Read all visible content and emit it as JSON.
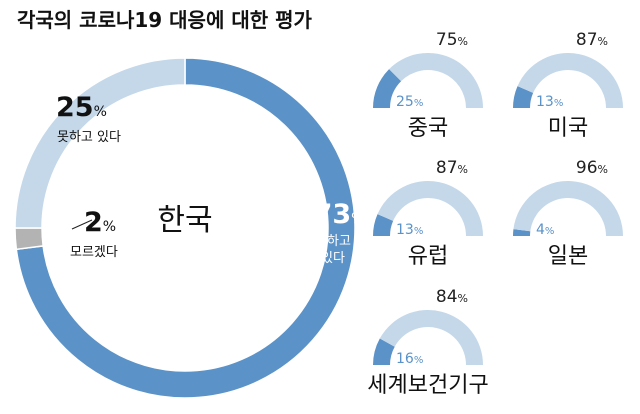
{
  "title": "각국의 코로나19 대응에 대한 평가",
  "colors": {
    "good": "#5b92c8",
    "bad": "#c4d8ea",
    "unknown": "#b3b3b3"
  },
  "chart_data": [
    {
      "type": "pie",
      "name": "한국",
      "slices": [
        {
          "label_lines": [
            "잘하고",
            "있다"
          ],
          "value": 73,
          "color_key": "good"
        },
        {
          "label_lines": [
            "모르겠다"
          ],
          "value": 2,
          "color_key": "unknown"
        },
        {
          "label_lines": [
            "못하고 있다"
          ],
          "value": 25,
          "color_key": "bad"
        }
      ]
    },
    {
      "type": "gauge",
      "items": [
        {
          "name": "중국",
          "low": 25,
          "high": 75
        },
        {
          "name": "미국",
          "low": 13,
          "high": 87
        },
        {
          "name": "유럽",
          "low": 13,
          "high": 87
        },
        {
          "name": "일본",
          "low": 4,
          "high": 96
        },
        {
          "name": "세계보건기구",
          "low": 16,
          "high": 84
        }
      ]
    }
  ]
}
